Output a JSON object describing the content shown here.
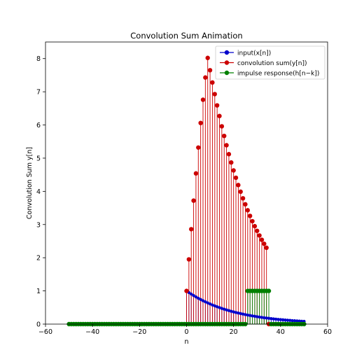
{
  "chart_data": {
    "type": "stem",
    "title": "Convolution Sum Animation",
    "xlabel": "n",
    "ylabel": "Convolution Sum y[n]",
    "xlim": [
      -60,
      60
    ],
    "ylim": [
      0,
      8.5
    ],
    "xticks": [
      -60,
      -40,
      -20,
      0,
      20,
      40,
      60
    ],
    "yticks": [
      0,
      1,
      2,
      3,
      4,
      5,
      6,
      7,
      8
    ],
    "xtick_labels": [
      "−60",
      "−40",
      "−20",
      "0",
      "20",
      "40",
      "60"
    ],
    "ytick_labels": [
      "0",
      "1",
      "2",
      "3",
      "4",
      "5",
      "6",
      "7",
      "8"
    ],
    "grid": false,
    "legend_position": "top-right",
    "series": [
      {
        "name": "input(x[n])",
        "color": "#0000cc",
        "x": [
          -50,
          -49,
          -48,
          -47,
          -46,
          -45,
          -44,
          -43,
          -42,
          -41,
          -40,
          -39,
          -38,
          -37,
          -36,
          -35,
          -34,
          -33,
          -32,
          -31,
          -30,
          -29,
          -28,
          -27,
          -26,
          -25,
          -24,
          -23,
          -22,
          -21,
          -20,
          -19,
          -18,
          -17,
          -16,
          -15,
          -14,
          -13,
          -12,
          -11,
          -10,
          -9,
          -8,
          -7,
          -6,
          -5,
          -4,
          -3,
          -2,
          -1,
          0,
          1,
          2,
          3,
          4,
          5,
          6,
          7,
          8,
          9,
          10,
          11,
          12,
          13,
          14,
          15,
          16,
          17,
          18,
          19,
          20,
          21,
          22,
          23,
          24,
          25,
          26,
          27,
          28,
          29,
          30,
          31,
          32,
          33,
          34,
          35,
          36,
          37,
          38,
          39,
          40,
          41,
          42,
          43,
          44,
          45,
          46,
          47,
          48,
          49,
          50
        ],
        "y": [
          0,
          0,
          0,
          0,
          0,
          0,
          0,
          0,
          0,
          0,
          0,
          0,
          0,
          0,
          0,
          0,
          0,
          0,
          0,
          0,
          0,
          0,
          0,
          0,
          0,
          0,
          0,
          0,
          0,
          0,
          0,
          0,
          0,
          0,
          0,
          0,
          0,
          0,
          0,
          0,
          0,
          0,
          0,
          0,
          0,
          0,
          0,
          0,
          0,
          0,
          1.0,
          0.951,
          0.905,
          0.861,
          0.819,
          0.779,
          0.741,
          0.705,
          0.67,
          0.638,
          0.607,
          0.577,
          0.549,
          0.522,
          0.497,
          0.472,
          0.449,
          0.427,
          0.407,
          0.387,
          0.368,
          0.35,
          0.333,
          0.317,
          0.301,
          0.287,
          0.273,
          0.259,
          0.247,
          0.235,
          0.223,
          0.212,
          0.202,
          0.192,
          0.183,
          0.174,
          0.165,
          0.157,
          0.15,
          0.142,
          0.135,
          0.129,
          0.122,
          0.116,
          0.111,
          0.105,
          0.1,
          0.095,
          0.091,
          0.086,
          0.082
        ]
      },
      {
        "name": "convolution sum(y[n])",
        "color": "#cc0000",
        "x": [
          0,
          1,
          2,
          3,
          4,
          5,
          6,
          7,
          8,
          9,
          10,
          11,
          12,
          13,
          14,
          15,
          16,
          17,
          18,
          19,
          20,
          21,
          22,
          23,
          24,
          25,
          26,
          27,
          28,
          29,
          30,
          31,
          32,
          33,
          34,
          35
        ],
        "y": [
          1.0,
          1.95,
          2.86,
          3.72,
          4.54,
          5.32,
          6.06,
          6.76,
          7.43,
          8.02,
          7.65,
          7.28,
          6.93,
          6.59,
          6.27,
          5.96,
          5.67,
          5.39,
          5.12,
          4.87,
          4.63,
          4.41,
          4.19,
          3.99,
          3.79,
          3.61,
          3.43,
          3.26,
          3.1,
          2.95,
          2.81,
          2.67,
          2.54,
          2.42,
          2.3,
          0.0
        ]
      },
      {
        "name": "impulse response(h[n−k])",
        "color": "#008000",
        "x": [
          -50,
          -49,
          -48,
          -47,
          -46,
          -45,
          -44,
          -43,
          -42,
          -41,
          -40,
          -39,
          -38,
          -37,
          -36,
          -35,
          -34,
          -33,
          -32,
          -31,
          -30,
          -29,
          -28,
          -27,
          -26,
          -25,
          -24,
          -23,
          -22,
          -21,
          -20,
          -19,
          -18,
          -17,
          -16,
          -15,
          -14,
          -13,
          -12,
          -11,
          -10,
          -9,
          -8,
          -7,
          -6,
          -5,
          -4,
          -3,
          -2,
          -1,
          0,
          1,
          2,
          3,
          4,
          5,
          6,
          7,
          8,
          9,
          10,
          11,
          12,
          13,
          14,
          15,
          16,
          17,
          18,
          19,
          20,
          21,
          22,
          23,
          24,
          25,
          26,
          27,
          28,
          29,
          30,
          31,
          32,
          33,
          34,
          35,
          36,
          37,
          38,
          39,
          40,
          41,
          42,
          43,
          44,
          45,
          46,
          47,
          48,
          49,
          50
        ],
        "y": [
          0,
          0,
          0,
          0,
          0,
          0,
          0,
          0,
          0,
          0,
          0,
          0,
          0,
          0,
          0,
          0,
          0,
          0,
          0,
          0,
          0,
          0,
          0,
          0,
          0,
          0,
          0,
          0,
          0,
          0,
          0,
          0,
          0,
          0,
          0,
          0,
          0,
          0,
          0,
          0,
          0,
          0,
          0,
          0,
          0,
          0,
          0,
          0,
          0,
          0,
          0,
          0,
          0,
          0,
          0,
          0,
          0,
          0,
          0,
          0,
          0,
          0,
          0,
          0,
          0,
          0,
          0,
          0,
          0,
          0,
          0,
          0,
          0,
          0,
          0,
          0,
          1,
          1,
          1,
          1,
          1,
          1,
          1,
          1,
          1,
          1,
          0,
          0,
          0,
          0,
          0,
          0,
          0,
          0,
          0,
          0,
          0,
          0,
          0,
          0,
          0
        ]
      }
    ]
  }
}
